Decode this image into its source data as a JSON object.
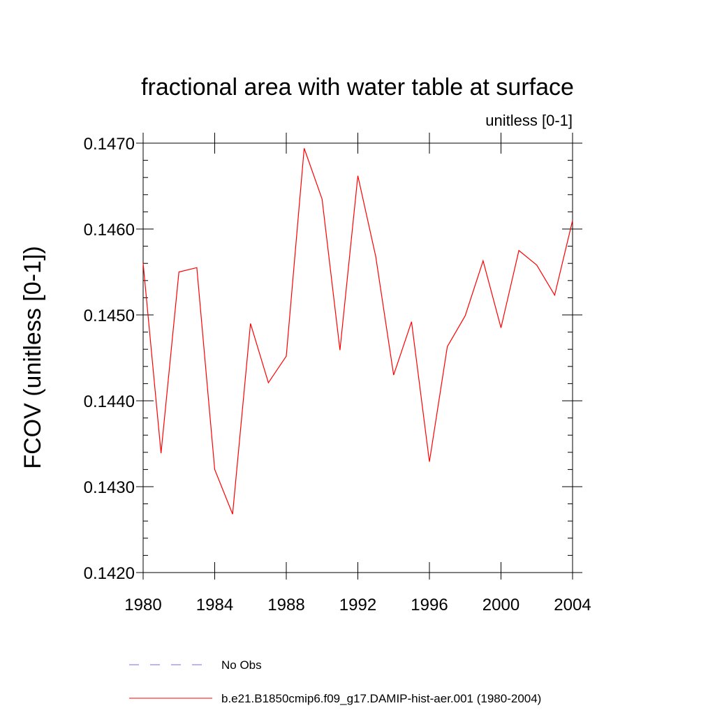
{
  "chart_data": {
    "type": "line",
    "title": "fractional area with water table at surface",
    "subtitle": "unitless [0-1]",
    "ylabel": "FCOV  (unitless [0-1])",
    "xlabel": "",
    "xlim": [
      1980,
      2004
    ],
    "ylim": [
      0.142,
      0.147
    ],
    "x_ticks": [
      "1980",
      "1984",
      "1988",
      "1992",
      "1996",
      "2000",
      "2004"
    ],
    "y_ticks": [
      "0.1420",
      "0.1430",
      "0.1440",
      "0.1450",
      "0.1460",
      "0.1470"
    ],
    "grid": false,
    "legend_position": "bottom",
    "series": [
      {
        "name": "b.e21.B1850cmip6.f09_g17.DAMIP-hist-aer.001 (1980-2004)",
        "color": "#ff0000",
        "style": "solid",
        "x": [
          1980,
          1981,
          1982,
          1983,
          1984,
          1985,
          1986,
          1987,
          1988,
          1989,
          1990,
          1991,
          1992,
          1993,
          1994,
          1995,
          1996,
          1997,
          1998,
          1999,
          2000,
          2001,
          2002,
          2003,
          2004
        ],
        "values": [
          0.1456,
          0.14339,
          0.1455,
          0.14555,
          0.1432,
          0.14268,
          0.1449,
          0.14421,
          0.14452,
          0.14694,
          0.14635,
          0.14459,
          0.14662,
          0.14568,
          0.1443,
          0.14492,
          0.14329,
          0.14463,
          0.14499,
          0.14563,
          0.14485,
          0.14575,
          0.14558,
          0.14523,
          0.1461
        ]
      }
    ],
    "legend": [
      {
        "label": "No Obs",
        "color": "#7b68ee",
        "style": "dashed"
      },
      {
        "label": "b.e21.B1850cmip6.f09_g17.DAMIP-hist-aer.001 (1980-2004)",
        "color": "#ff0000",
        "style": "solid"
      }
    ]
  }
}
